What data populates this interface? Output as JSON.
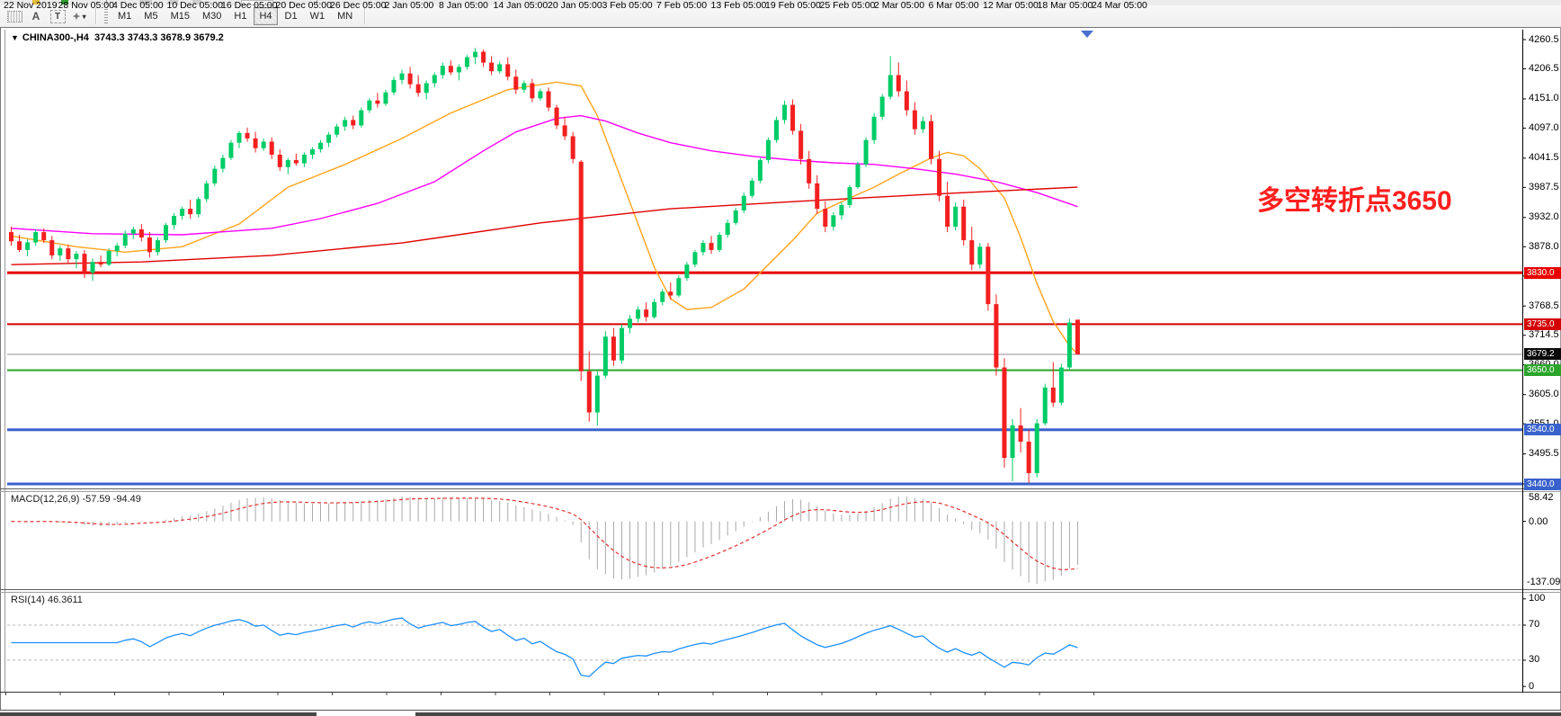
{
  "toolbar": {
    "icons": [
      {
        "name": "grid-dotted-icon"
      },
      {
        "name": "text-a-icon",
        "glyph": "A"
      },
      {
        "name": "text-label-icon",
        "glyph": "T"
      },
      {
        "name": "arrows-icon",
        "glyph": "✦",
        "caret": "▾"
      }
    ],
    "timeframes": [
      "M1",
      "M5",
      "M15",
      "M30",
      "H1",
      "H4",
      "D1",
      "W1",
      "MN"
    ],
    "selected_timeframe": "H4"
  },
  "chart": {
    "title_caret": "▼",
    "symbol": "CHINA300-,H4",
    "ohlc_text": "3743.3 3743.3 3678.9 3679.2",
    "annotation": {
      "text": "多空转折点3650",
      "color": "#ff1f1f"
    },
    "current_price": "3679.2",
    "price_axis_ticks": [
      "4260.5",
      "4206.5",
      "4151.0",
      "4097.0",
      "4041.5",
      "3987.5",
      "3932.0",
      "3878.0",
      "3824.0",
      "3768.5",
      "3714.5",
      "3660.0",
      "3605.0",
      "3551.0",
      "3495.5",
      "3440.0"
    ],
    "hlines": [
      {
        "price": 3830.0,
        "label": "3830.0",
        "color": "#e80000",
        "thickness": 3
      },
      {
        "price": 3735.0,
        "label": "3735.0",
        "color": "#d40000",
        "thickness": 2
      },
      {
        "price": 3679.2,
        "label": "3679.2",
        "color": "#909090",
        "thickness": 1,
        "badge": "#0a0a0a",
        "is_price_line": true
      },
      {
        "price": 3650.0,
        "label": "3650.0",
        "color": "#2aa52a",
        "thickness": 2
      },
      {
        "price": 3540.0,
        "label": "3540.0",
        "color": "#3a62cc",
        "thickness": 3
      },
      {
        "price": 3440.0,
        "label": "3440.0",
        "color": "#3a62cc",
        "thickness": 3
      }
    ]
  },
  "chart_data": {
    "type": "candlestick",
    "symbol": "CHINA300-",
    "timeframe": "H4",
    "ylim": [
      3432,
      4279
    ],
    "x_labels": [
      "22 Nov 2019",
      "28 Nov 05:00",
      "4 Dec 05:00",
      "10 Dec 05:00",
      "16 Dec 05:00",
      "20 Dec 05:00",
      "26 Dec 05:00",
      "2 Jan 05:00",
      "8 Jan 05:00",
      "14 Jan 05:00",
      "20 Jan 05:00",
      "3 Feb 05:00",
      "7 Feb 05:00",
      "13 Feb 05:00",
      "19 Feb 05:00",
      "25 Feb 05:00",
      "2 Mar 05:00",
      "6 Mar 05:00",
      "12 Mar 05:00",
      "18 Mar 05:00",
      "24 Mar 05:00"
    ],
    "colors": {
      "up": "#00cc66",
      "down": "#f31f1f",
      "ma_fast": "#ffa41b",
      "ma_mid": "#ff00ff",
      "ma_slow": "#e00000",
      "macd_hist": "#a8a8a8",
      "macd_signal": "#e03030",
      "rsi": "#1e90ff"
    },
    "candles": [
      [
        3905,
        3915,
        3880,
        3888
      ],
      [
        3888,
        3900,
        3868,
        3872
      ],
      [
        3872,
        3892,
        3860,
        3886
      ],
      [
        3886,
        3910,
        3880,
        3905
      ],
      [
        3905,
        3912,
        3885,
        3890
      ],
      [
        3890,
        3898,
        3855,
        3862
      ],
      [
        3862,
        3880,
        3852,
        3875
      ],
      [
        3875,
        3882,
        3848,
        3855
      ],
      [
        3855,
        3870,
        3838,
        3865
      ],
      [
        3865,
        3872,
        3820,
        3830
      ],
      [
        3830,
        3856,
        3815,
        3850
      ],
      [
        3850,
        3862,
        3840,
        3845
      ],
      [
        3845,
        3875,
        3842,
        3870
      ],
      [
        3870,
        3885,
        3860,
        3880
      ],
      [
        3880,
        3908,
        3875,
        3902
      ],
      [
        3902,
        3915,
        3892,
        3910
      ],
      [
        3910,
        3920,
        3888,
        3895
      ],
      [
        3895,
        3905,
        3858,
        3868
      ],
      [
        3868,
        3895,
        3862,
        3890
      ],
      [
        3890,
        3922,
        3885,
        3918
      ],
      [
        3918,
        3940,
        3910,
        3935
      ],
      [
        3935,
        3952,
        3928,
        3948
      ],
      [
        3948,
        3965,
        3930,
        3938
      ],
      [
        3938,
        3970,
        3932,
        3966
      ],
      [
        3966,
        4000,
        3960,
        3995
      ],
      [
        3995,
        4028,
        3990,
        4022
      ],
      [
        4022,
        4048,
        4015,
        4042
      ],
      [
        4042,
        4075,
        4038,
        4070
      ],
      [
        4070,
        4092,
        4060,
        4088
      ],
      [
        4088,
        4098,
        4072,
        4078
      ],
      [
        4078,
        4090,
        4052,
        4060
      ],
      [
        4060,
        4078,
        4055,
        4072
      ],
      [
        4072,
        4080,
        4040,
        4048
      ],
      [
        4048,
        4058,
        4018,
        4025
      ],
      [
        4025,
        4042,
        4012,
        4038
      ],
      [
        4038,
        4050,
        4028,
        4032
      ],
      [
        4032,
        4052,
        4025,
        4048
      ],
      [
        4048,
        4062,
        4040,
        4058
      ],
      [
        4058,
        4075,
        4052,
        4070
      ],
      [
        4070,
        4090,
        4062,
        4085
      ],
      [
        4085,
        4105,
        4080,
        4100
      ],
      [
        4100,
        4118,
        4092,
        4112
      ],
      [
        4112,
        4120,
        4095,
        4102
      ],
      [
        4102,
        4135,
        4098,
        4130
      ],
      [
        4130,
        4152,
        4125,
        4148
      ],
      [
        4148,
        4162,
        4135,
        4142
      ],
      [
        4142,
        4168,
        4138,
        4163
      ],
      [
        4163,
        4192,
        4158,
        4186
      ],
      [
        4186,
        4205,
        4178,
        4198
      ],
      [
        4198,
        4210,
        4170,
        4178
      ],
      [
        4178,
        4195,
        4155,
        4162
      ],
      [
        4162,
        4185,
        4150,
        4180
      ],
      [
        4180,
        4200,
        4172,
        4195
      ],
      [
        4195,
        4218,
        4188,
        4212
      ],
      [
        4212,
        4222,
        4195,
        4200
      ],
      [
        4200,
        4215,
        4185,
        4210
      ],
      [
        4210,
        4232,
        4205,
        4228
      ],
      [
        4228,
        4245,
        4215,
        4238
      ],
      [
        4238,
        4242,
        4210,
        4218
      ],
      [
        4218,
        4230,
        4195,
        4202
      ],
      [
        4202,
        4220,
        4198,
        4215
      ],
      [
        4215,
        4228,
        4185,
        4192
      ],
      [
        4192,
        4205,
        4160,
        4168
      ],
      [
        4168,
        4185,
        4162,
        4180
      ],
      [
        4180,
        4188,
        4145,
        4152
      ],
      [
        4152,
        4170,
        4148,
        4165
      ],
      [
        4165,
        4172,
        4128,
        4135
      ],
      [
        4135,
        4140,
        4095,
        4102
      ],
      [
        4102,
        4118,
        4075,
        4082
      ],
      [
        4082,
        4090,
        4032,
        4040
      ],
      [
        4035,
        4038,
        3630,
        3648
      ],
      [
        3648,
        3685,
        3555,
        3572
      ],
      [
        3572,
        3648,
        3548,
        3640
      ],
      [
        3640,
        3722,
        3635,
        3712
      ],
      [
        3712,
        3728,
        3658,
        3668
      ],
      [
        3668,
        3735,
        3662,
        3728
      ],
      [
        3728,
        3752,
        3718,
        3745
      ],
      [
        3745,
        3768,
        3738,
        3762
      ],
      [
        3762,
        3775,
        3740,
        3748
      ],
      [
        3748,
        3782,
        3745,
        3776
      ],
      [
        3776,
        3800,
        3770,
        3795
      ],
      [
        3795,
        3812,
        3780,
        3788
      ],
      [
        3788,
        3825,
        3785,
        3820
      ],
      [
        3820,
        3850,
        3815,
        3845
      ],
      [
        3845,
        3872,
        3840,
        3868
      ],
      [
        3868,
        3890,
        3862,
        3885
      ],
      [
        3885,
        3898,
        3865,
        3872
      ],
      [
        3872,
        3905,
        3868,
        3900
      ],
      [
        3900,
        3928,
        3895,
        3922
      ],
      [
        3922,
        3950,
        3918,
        3945
      ],
      [
        3945,
        3978,
        3940,
        3972
      ],
      [
        3972,
        4005,
        3968,
        4000
      ],
      [
        4000,
        4042,
        3995,
        4038
      ],
      [
        4038,
        4080,
        4032,
        4075
      ],
      [
        4075,
        4118,
        4070,
        4112
      ],
      [
        4112,
        4148,
        4105,
        4140
      ],
      [
        4140,
        4150,
        4085,
        4092
      ],
      [
        4092,
        4105,
        4030,
        4040
      ],
      [
        4040,
        4055,
        3985,
        3995
      ],
      [
        3995,
        4010,
        3938,
        3948
      ],
      [
        3948,
        3962,
        3905,
        3915
      ],
      [
        3915,
        3942,
        3908,
        3936
      ],
      [
        3936,
        3960,
        3928,
        3955
      ],
      [
        3955,
        3992,
        3950,
        3988
      ],
      [
        3988,
        4035,
        3985,
        4030
      ],
      [
        4030,
        4080,
        4025,
        4075
      ],
      [
        4075,
        4125,
        4068,
        4118
      ],
      [
        4118,
        4160,
        4112,
        4155
      ],
      [
        4155,
        4230,
        4150,
        4195
      ],
      [
        4195,
        4218,
        4155,
        4165
      ],
      [
        4165,
        4185,
        4120,
        4130
      ],
      [
        4130,
        4145,
        4085,
        4095
      ],
      [
        4095,
        4118,
        4088,
        4110
      ],
      [
        4110,
        4122,
        4030,
        4040
      ],
      [
        4040,
        4055,
        3962,
        3972
      ],
      [
        3972,
        3998,
        3905,
        3915
      ],
      [
        3915,
        3960,
        3908,
        3952
      ],
      [
        3952,
        3965,
        3880,
        3890
      ],
      [
        3890,
        3915,
        3835,
        3845
      ],
      [
        3845,
        3885,
        3838,
        3878
      ],
      [
        3878,
        3885,
        3760,
        3772
      ],
      [
        3772,
        3790,
        3640,
        3655
      ],
      [
        3655,
        3672,
        3470,
        3488
      ],
      [
        3488,
        3560,
        3445,
        3548
      ],
      [
        3548,
        3580,
        3498,
        3518
      ],
      [
        3518,
        3540,
        3442,
        3460
      ],
      [
        3460,
        3560,
        3452,
        3552
      ],
      [
        3552,
        3625,
        3548,
        3618
      ],
      [
        3618,
        3665,
        3582,
        3590
      ],
      [
        3590,
        3662,
        3585,
        3655
      ],
      [
        3655,
        3745,
        3650,
        3738
      ],
      [
        3743.3,
        3743.3,
        3678.9,
        3679.2
      ]
    ],
    "overlays": [
      {
        "name": "ma-fast-orange",
        "points": [
          [
            0,
            3898
          ],
          [
            8,
            3878
          ],
          [
            14,
            3868
          ],
          [
            21,
            3878
          ],
          [
            28,
            3920
          ],
          [
            34,
            3988
          ],
          [
            41,
            4030
          ],
          [
            48,
            4078
          ],
          [
            54,
            4125
          ],
          [
            61,
            4168
          ],
          [
            67,
            4182
          ],
          [
            70,
            4175
          ],
          [
            72,
            4120
          ],
          [
            76,
            3960
          ],
          [
            79,
            3840
          ],
          [
            81,
            3782
          ],
          [
            83,
            3762
          ],
          [
            86,
            3766
          ],
          [
            90,
            3800
          ],
          [
            93,
            3845
          ],
          [
            96,
            3890
          ],
          [
            99,
            3940
          ],
          [
            103,
            3968
          ],
          [
            106,
            3988
          ],
          [
            109,
            4012
          ],
          [
            113,
            4042
          ],
          [
            115,
            4052
          ],
          [
            117,
            4046
          ],
          [
            119,
            4022
          ],
          [
            122,
            3968
          ],
          [
            124,
            3895
          ],
          [
            126,
            3810
          ],
          [
            128,
            3740
          ],
          [
            130,
            3695
          ],
          [
            131,
            3680
          ]
        ]
      },
      {
        "name": "ma-mid-magenta",
        "points": [
          [
            0,
            3912
          ],
          [
            10,
            3902
          ],
          [
            21,
            3900
          ],
          [
            32,
            3912
          ],
          [
            38,
            3930
          ],
          [
            45,
            3958
          ],
          [
            52,
            3998
          ],
          [
            58,
            4055
          ],
          [
            62,
            4090
          ],
          [
            67,
            4115
          ],
          [
            70,
            4120
          ],
          [
            73,
            4110
          ],
          [
            77,
            4088
          ],
          [
            81,
            4070
          ],
          [
            86,
            4055
          ],
          [
            91,
            4045
          ],
          [
            96,
            4038
          ],
          [
            101,
            4033
          ],
          [
            106,
            4030
          ],
          [
            111,
            4022
          ],
          [
            116,
            4012
          ],
          [
            121,
            3998
          ],
          [
            126,
            3978
          ],
          [
            131,
            3952
          ]
        ]
      },
      {
        "name": "ma-slow-red",
        "points": [
          [
            0,
            3845
          ],
          [
            16,
            3850
          ],
          [
            32,
            3862
          ],
          [
            48,
            3885
          ],
          [
            65,
            3922
          ],
          [
            81,
            3948
          ],
          [
            97,
            3962
          ],
          [
            113,
            3975
          ],
          [
            131,
            3988
          ]
        ]
      }
    ],
    "indicators": [
      {
        "name": "MACD",
        "label": "MACD(12,26,9) -57.59 -94.49",
        "params": [
          12,
          26,
          9
        ],
        "value_main": -57.59,
        "value_signal": -94.49,
        "axis_labels": [
          "58.42",
          "0.00",
          "-137.09"
        ]
      },
      {
        "name": "RSI",
        "label": "RSI(14) 46.3611",
        "period": 14,
        "value": 46.3611,
        "axis_labels": [
          "100",
          "70",
          "30",
          "0"
        ],
        "levels": [
          70,
          30
        ]
      }
    ]
  },
  "status_bar": {}
}
